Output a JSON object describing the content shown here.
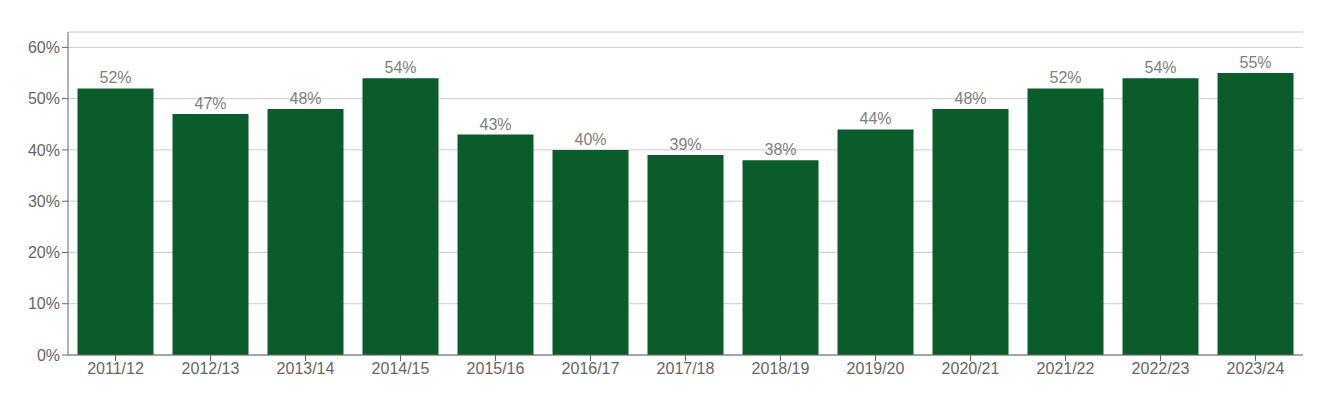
{
  "chart_data": {
    "type": "bar",
    "categories": [
      "2011/12",
      "2012/13",
      "2013/14",
      "2014/15",
      "2015/16",
      "2016/17",
      "2017/18",
      "2018/19",
      "2019/20",
      "2020/21",
      "2021/22",
      "2022/23",
      "2023/24"
    ],
    "values": [
      52,
      47,
      48,
      54,
      43,
      40,
      39,
      38,
      44,
      48,
      52,
      54,
      55
    ],
    "value_labels": [
      "52%",
      "47%",
      "48%",
      "54%",
      "43%",
      "40%",
      "39%",
      "38%",
      "44%",
      "48%",
      "52%",
      "54%",
      "55%"
    ],
    "data_labels": true,
    "color": "#0a5c2a",
    "ylim": [
      0,
      63
    ],
    "yticks": [
      {
        "value": 0,
        "label": "0%"
      },
      {
        "value": 10,
        "label": "10%"
      },
      {
        "value": 20,
        "label": "20%"
      },
      {
        "value": 30,
        "label": "30%"
      },
      {
        "value": 40,
        "label": "40%"
      },
      {
        "value": 50,
        "label": "50%"
      },
      {
        "value": 60,
        "label": "60%"
      }
    ],
    "grid": true
  }
}
